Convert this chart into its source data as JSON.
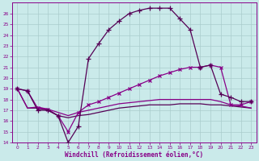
{
  "xlabel": "Windchill (Refroidissement éolien,°C)",
  "background_color": "#caeaea",
  "grid_color": "#aacccc",
  "line_color": "#880088",
  "xlim": [
    -0.5,
    23.5
  ],
  "ylim": [
    14,
    27
  ],
  "yticks": [
    14,
    15,
    16,
    17,
    18,
    19,
    20,
    21,
    22,
    23,
    24,
    25,
    26
  ],
  "xticks": [
    0,
    1,
    2,
    3,
    4,
    5,
    6,
    7,
    8,
    9,
    10,
    11,
    12,
    13,
    14,
    15,
    16,
    17,
    18,
    19,
    20,
    21,
    22,
    23
  ],
  "lines": [
    {
      "x": [
        0,
        1,
        2,
        3,
        4,
        5,
        6,
        7,
        8,
        9,
        10,
        11,
        12,
        13,
        14,
        15,
        16,
        17,
        18,
        19,
        20,
        21,
        22,
        23
      ],
      "y": [
        19.0,
        18.8,
        17.2,
        17.1,
        16.5,
        15.0,
        16.8,
        17.5,
        17.8,
        18.2,
        18.6,
        19.0,
        19.4,
        19.8,
        20.2,
        20.5,
        20.8,
        21.0,
        21.0,
        21.2,
        21.0,
        17.5,
        17.5,
        17.8
      ],
      "marker": "x",
      "linewidth": 0.9,
      "markersize": 3,
      "darker": false
    },
    {
      "x": [
        0,
        1,
        2,
        3,
        4,
        5,
        6,
        7,
        8,
        9,
        10,
        11,
        12,
        13,
        14,
        15,
        16,
        17,
        18,
        19,
        20,
        21,
        22,
        23
      ],
      "y": [
        19.0,
        18.8,
        17.0,
        17.0,
        16.5,
        14.0,
        15.5,
        21.8,
        23.2,
        24.5,
        25.3,
        26.0,
        26.3,
        26.5,
        26.5,
        26.5,
        25.5,
        24.5,
        21.0,
        21.2,
        18.5,
        18.2,
        17.8,
        17.8
      ],
      "marker": "+",
      "linewidth": 0.9,
      "markersize": 5,
      "darker": true
    },
    {
      "x": [
        0,
        1,
        2,
        3,
        4,
        5,
        6,
        7,
        8,
        9,
        10,
        11,
        12,
        13,
        14,
        15,
        16,
        17,
        18,
        19,
        20,
        21,
        22,
        23
      ],
      "y": [
        19.0,
        17.2,
        17.2,
        17.0,
        16.5,
        16.3,
        16.5,
        16.6,
        16.8,
        17.0,
        17.2,
        17.3,
        17.4,
        17.5,
        17.5,
        17.5,
        17.6,
        17.6,
        17.6,
        17.5,
        17.5,
        17.4,
        17.3,
        17.2
      ],
      "marker": null,
      "linewidth": 0.9,
      "markersize": 0,
      "darker": true
    },
    {
      "x": [
        0,
        1,
        2,
        3,
        4,
        5,
        6,
        7,
        8,
        9,
        10,
        11,
        12,
        13,
        14,
        15,
        16,
        17,
        18,
        19,
        20,
        21,
        22,
        23
      ],
      "y": [
        19.0,
        17.2,
        17.3,
        17.1,
        16.8,
        16.5,
        16.8,
        17.0,
        17.2,
        17.4,
        17.6,
        17.7,
        17.8,
        17.9,
        18.0,
        18.0,
        18.0,
        18.0,
        18.0,
        18.0,
        17.8,
        17.5,
        17.4,
        17.2
      ],
      "marker": null,
      "linewidth": 0.9,
      "markersize": 0,
      "darker": false
    }
  ]
}
